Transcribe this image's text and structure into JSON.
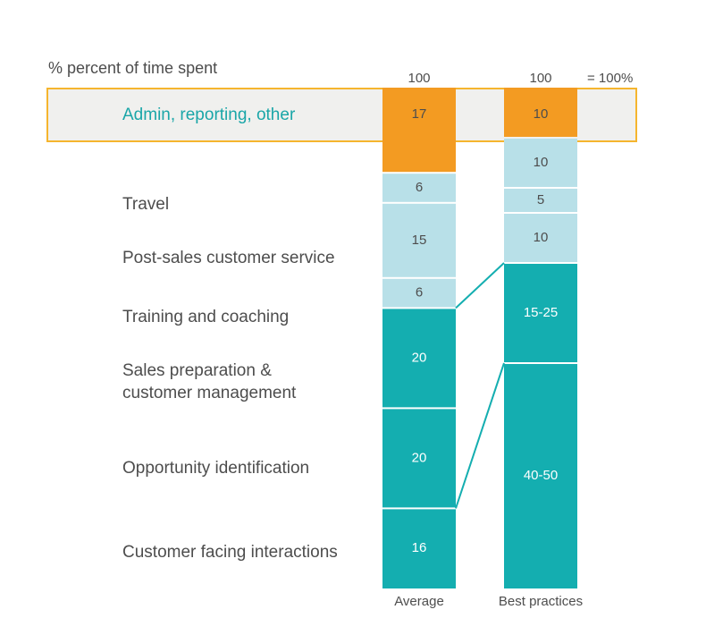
{
  "chart_data": {
    "type": "bar",
    "subtype": "stacked-100",
    "title": "% percent of time spent",
    "total_note": "= 100%",
    "categories": [
      "Customer facing interactions",
      "Opportunity identification",
      "Sales preparation & customer management",
      "Training and coaching",
      "Post-sales customer service",
      "Travel",
      "Admin, reporting, other"
    ],
    "category_lines": [
      [
        "Customer facing interactions"
      ],
      [
        "Opportunity identification"
      ],
      [
        "Sales preparation &",
        "customer management"
      ],
      [
        "Training and coaching"
      ],
      [
        "Post-sales customer service"
      ],
      [
        "Travel"
      ],
      [
        "Admin, reporting, other"
      ]
    ],
    "highlighted_category": "Admin, reporting, other",
    "series": [
      {
        "name": "Average",
        "total_label": "100",
        "segments": [
          {
            "value": 16,
            "label": "16",
            "color": "#14aeb0"
          },
          {
            "value": 20,
            "label": "20",
            "color": "#14aeb0"
          },
          {
            "value": 20,
            "label": "20",
            "color": "#14aeb0"
          },
          {
            "value": 6,
            "label": "6",
            "color": "#b8e0e8"
          },
          {
            "value": 15,
            "label": "15",
            "color": "#b8e0e8"
          },
          {
            "value": 6,
            "label": "6",
            "color": "#b8e0e8"
          },
          {
            "value": 17,
            "label": "17",
            "color": "#f39b22"
          }
        ]
      },
      {
        "name": "Best practices",
        "total_label": "100",
        "segments": [
          {
            "value": 45,
            "label": "40-50",
            "color": "#14aeb0"
          },
          {
            "value": 20,
            "label": "15-25",
            "color": "#14aeb0"
          },
          {
            "value": 10,
            "label": "10",
            "color": "#b8e0e8"
          },
          {
            "value": 5,
            "label": "5",
            "color": "#b8e0e8"
          },
          {
            "value": 10,
            "label": "10",
            "color": "#b8e0e8"
          },
          {
            "value": 10,
            "label": "10",
            "color": "#f39b22"
          }
        ]
      }
    ],
    "colors": {
      "highlight_border": "#f5b52e",
      "highlight_fill": "#f0f0ee",
      "label_text": "#4d4d4d",
      "highlight_text": "#1aa6a8",
      "connector": "#14aeb0",
      "dark_segment_text": "#ffffff",
      "light_segment_text": "#4d4d4d"
    }
  }
}
